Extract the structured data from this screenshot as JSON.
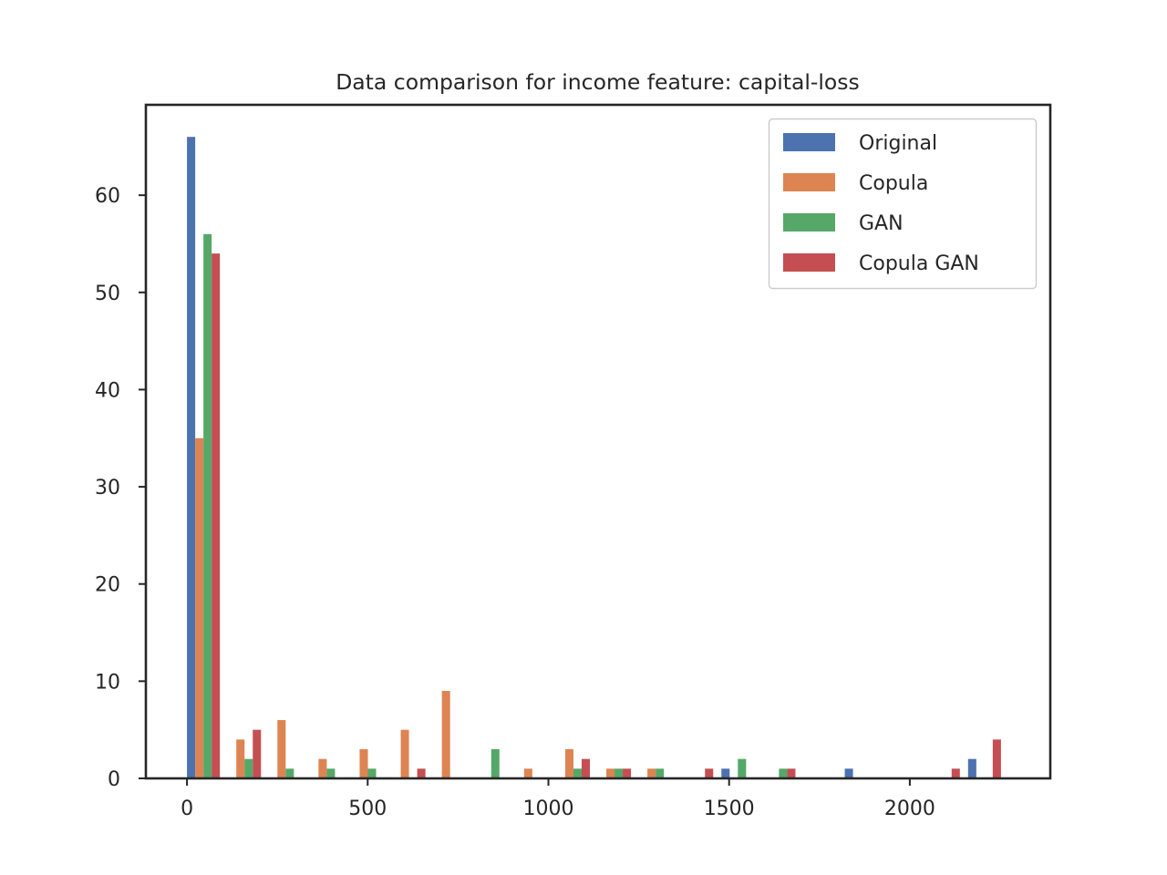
{
  "chart_data": {
    "type": "bar",
    "title": "Data comparison for income feature: capital-loss",
    "xlabel": "",
    "ylabel": "",
    "xlim": [
      -113.75,
      2388.75
    ],
    "ylim": [
      0,
      69.3
    ],
    "x_ticks": [
      0,
      500,
      1000,
      1500,
      2000
    ],
    "x_tick_labels": [
      "0",
      "500",
      "1000",
      "1500",
      "2000"
    ],
    "y_ticks": [
      0,
      10,
      20,
      30,
      40,
      50,
      60
    ],
    "y_tick_labels": [
      "0",
      "10",
      "20",
      "30",
      "40",
      "50",
      "60"
    ],
    "grid": false,
    "legend_position": "top-right",
    "bin_edges": [
      0,
      113.75,
      227.5,
      341.25,
      455,
      568.75,
      682.5,
      796.25,
      910,
      1023.75,
      1137.5,
      1251.25,
      1365,
      1478.75,
      1592.5,
      1706.25,
      1820,
      1933.75,
      2047.5,
      2161.25,
      2275
    ],
    "series": [
      {
        "name": "Original",
        "color": "#4c72b0",
        "values": [
          66,
          0,
          0,
          0,
          0,
          0,
          0,
          0,
          0,
          0,
          0,
          0,
          0,
          1,
          0,
          0,
          1,
          0,
          0,
          2
        ]
      },
      {
        "name": "Copula",
        "color": "#dd8452",
        "values": [
          35,
          4,
          6,
          2,
          3,
          5,
          9,
          0,
          1,
          3,
          1,
          1,
          0,
          0,
          0,
          0,
          0,
          0,
          0,
          0
        ]
      },
      {
        "name": "GAN",
        "color": "#55a868",
        "values": [
          56,
          2,
          1,
          1,
          1,
          0,
          0,
          3,
          0,
          1,
          1,
          1,
          0,
          2,
          1,
          0,
          0,
          0,
          0,
          0
        ]
      },
      {
        "name": "Copula GAN",
        "color": "#c44e52",
        "values": [
          54,
          5,
          0,
          0,
          0,
          1,
          0,
          0,
          0,
          2,
          1,
          0,
          1,
          0,
          1,
          0,
          0,
          0,
          1,
          4
        ]
      }
    ]
  }
}
